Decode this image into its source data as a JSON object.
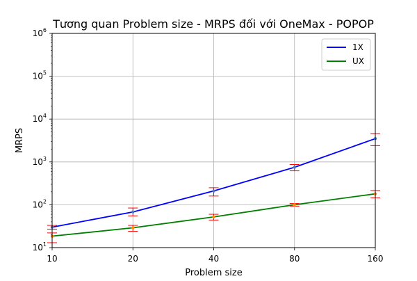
{
  "chart_data": {
    "type": "line",
    "title": "Tương quan Problem size - MRPS đối với OneMax - POPOP",
    "xlabel": "Problem size",
    "ylabel": "MRPS",
    "x_scale": "log2",
    "y_scale": "log10",
    "x": [
      10,
      20,
      40,
      80,
      160
    ],
    "x_tick_labels": [
      "10",
      "20",
      "40",
      "80",
      "160"
    ],
    "y_ticks": [
      {
        "base": "10",
        "exp": "1"
      },
      {
        "base": "10",
        "exp": "2"
      },
      {
        "base": "10",
        "exp": "3"
      },
      {
        "base": "10",
        "exp": "4"
      },
      {
        "base": "10",
        "exp": "5"
      },
      {
        "base": "10",
        "exp": "6"
      }
    ],
    "xlim": [
      10,
      160
    ],
    "ylim": [
      10,
      1000000
    ],
    "grid": true,
    "legend_position": "top-right",
    "series": [
      {
        "name": "1X",
        "color": "#0000ff",
        "marker_color": "#4878cf",
        "values": [
          30,
          68,
          210,
          750,
          3500
        ],
        "error_low": [
          27,
          55,
          160,
          620,
          2400
        ],
        "error_high": [
          33,
          84,
          250,
          870,
          4600
        ]
      },
      {
        "name": "UX",
        "color": "#008000",
        "marker_color": "#ff8c00",
        "values": [
          18.5,
          29,
          52,
          100,
          180
        ],
        "error_low": [
          13,
          24,
          44,
          93,
          145
        ],
        "error_high": [
          22,
          33,
          60,
          107,
          215
        ]
      }
    ],
    "error_bar_color": "#ff0000"
  }
}
